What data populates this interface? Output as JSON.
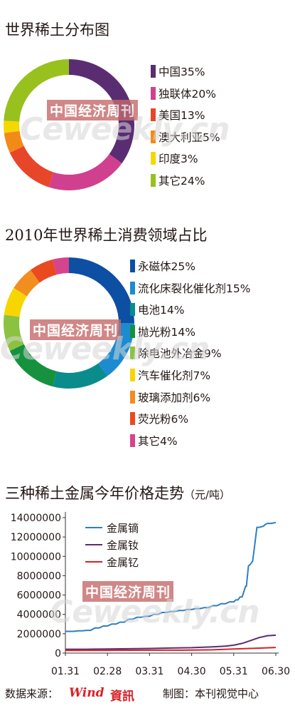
{
  "chart_data": [
    {
      "type": "pie",
      "title": "世界稀土分布图",
      "categories": [
        "中国",
        "独联体",
        "美国",
        "澳大利亚",
        "印度",
        "其它"
      ],
      "values": [
        35,
        20,
        13,
        5,
        3,
        24
      ],
      "labels": [
        "中国35%",
        "独联体20%",
        "美国13%",
        "澳大利亚5%",
        "印度3%",
        "其它24%"
      ],
      "colors": [
        "#5a2d73",
        "#d1408e",
        "#e8462a",
        "#f28a18",
        "#f5d800",
        "#98c11e"
      ]
    },
    {
      "type": "pie",
      "title": "2010年世界稀土消费领域占比",
      "categories": [
        "永磁体",
        "流化床裂化催化剂",
        "电池",
        "抛光粉",
        "除电池外冶金",
        "汽车催化剂",
        "玻璃添加剂",
        "荧光粉",
        "其它"
      ],
      "values": [
        25,
        15,
        14,
        14,
        9,
        7,
        6,
        6,
        4
      ],
      "labels": [
        "永磁体25%",
        "流化床裂化催化剂15%",
        "电池14%",
        "抛光粉14%",
        "除电池外冶金9%",
        "汽车催化剂7%",
        "玻璃添加剂6%",
        "荧光粉6%",
        "其它4%"
      ],
      "colors": [
        "#0d4fa2",
        "#1c8bd0",
        "#0a8c8c",
        "#16913d",
        "#8cc23f",
        "#f7d600",
        "#f28d1f",
        "#e94a1f",
        "#d6448b"
      ]
    },
    {
      "type": "line",
      "title": "三种稀土金属今年价格走势",
      "unit": "（元/吨）",
      "x_ticks": [
        "01.31",
        "02.28",
        "03.31",
        "04.30",
        "05.31",
        "06.30"
      ],
      "y_ticks": [
        "0",
        "2000000",
        "4000000",
        "6000000",
        "8000000",
        "10000000",
        "12000000",
        "14000000"
      ],
      "ylim": [
        0,
        14000000
      ],
      "legend_position": "top-left",
      "series": [
        {
          "name": "金属镝",
          "color": "#2e7fc0",
          "x": [
            0,
            0.2,
            0.3,
            0.4,
            0.5,
            0.6,
            0.7,
            0.8,
            0.9,
            1.0,
            1.1,
            1.2,
            1.3,
            1.4,
            1.5,
            1.6,
            1.7,
            1.8,
            1.9,
            2.0,
            2.1,
            2.2,
            2.3,
            2.4,
            2.5,
            2.6,
            2.7,
            2.8,
            2.9,
            3.0,
            3.1,
            3.2,
            3.3,
            3.4,
            3.5,
            3.6,
            3.7,
            3.8,
            3.9,
            4.0,
            4.05,
            4.1,
            4.15,
            4.2,
            4.28,
            4.3,
            4.35,
            4.4,
            4.45,
            4.5,
            4.55,
            4.6,
            4.7,
            4.75,
            4.8,
            4.9,
            5.0
          ],
          "values": [
            2250000,
            2250000,
            2300000,
            2300000,
            2350000,
            2350000,
            2600000,
            2600000,
            2800000,
            2800000,
            3000000,
            3000000,
            3200000,
            3200000,
            3500000,
            3500000,
            3700000,
            3700000,
            3800000,
            3800000,
            4000000,
            4000000,
            4200000,
            4200000,
            4300000,
            4300000,
            4400000,
            4400000,
            4500000,
            4500000,
            4600000,
            4600000,
            4700000,
            4700000,
            4900000,
            4900000,
            5100000,
            5100000,
            5300000,
            5300000,
            5500000,
            5500000,
            5800000,
            5800000,
            6900000,
            6900000,
            9000000,
            9200000,
            9500000,
            11200000,
            13000000,
            13000000,
            13100000,
            13300000,
            13400000,
            13400000,
            13500000
          ]
        },
        {
          "name": "金属钕",
          "color": "#5a2d73",
          "x": [
            0,
            0.5,
            1.0,
            1.5,
            2.0,
            2.5,
            3.0,
            3.5,
            3.8,
            4.0,
            4.2,
            4.4,
            4.6,
            4.8,
            5.0
          ],
          "values": [
            400000,
            400000,
            420000,
            450000,
            480000,
            520000,
            560000,
            650000,
            720000,
            820000,
            1000000,
            1300000,
            1600000,
            1800000,
            1850000
          ]
        },
        {
          "name": "金属钇",
          "color": "#d7222a",
          "x": [
            0,
            1.0,
            2.0,
            3.0,
            3.5,
            4.0,
            4.5,
            5.0
          ],
          "values": [
            280000,
            290000,
            300000,
            310000,
            340000,
            420000,
            500000,
            580000
          ]
        }
      ]
    }
  ],
  "watermark": {
    "cn": "中国经济周刊",
    "en": "Ceweekly.cn"
  },
  "footer": {
    "source_label": "数据来源：",
    "brand_word": "Wind",
    "brand_cn": "資訊",
    "credit": "制图：本刊视觉中心"
  }
}
